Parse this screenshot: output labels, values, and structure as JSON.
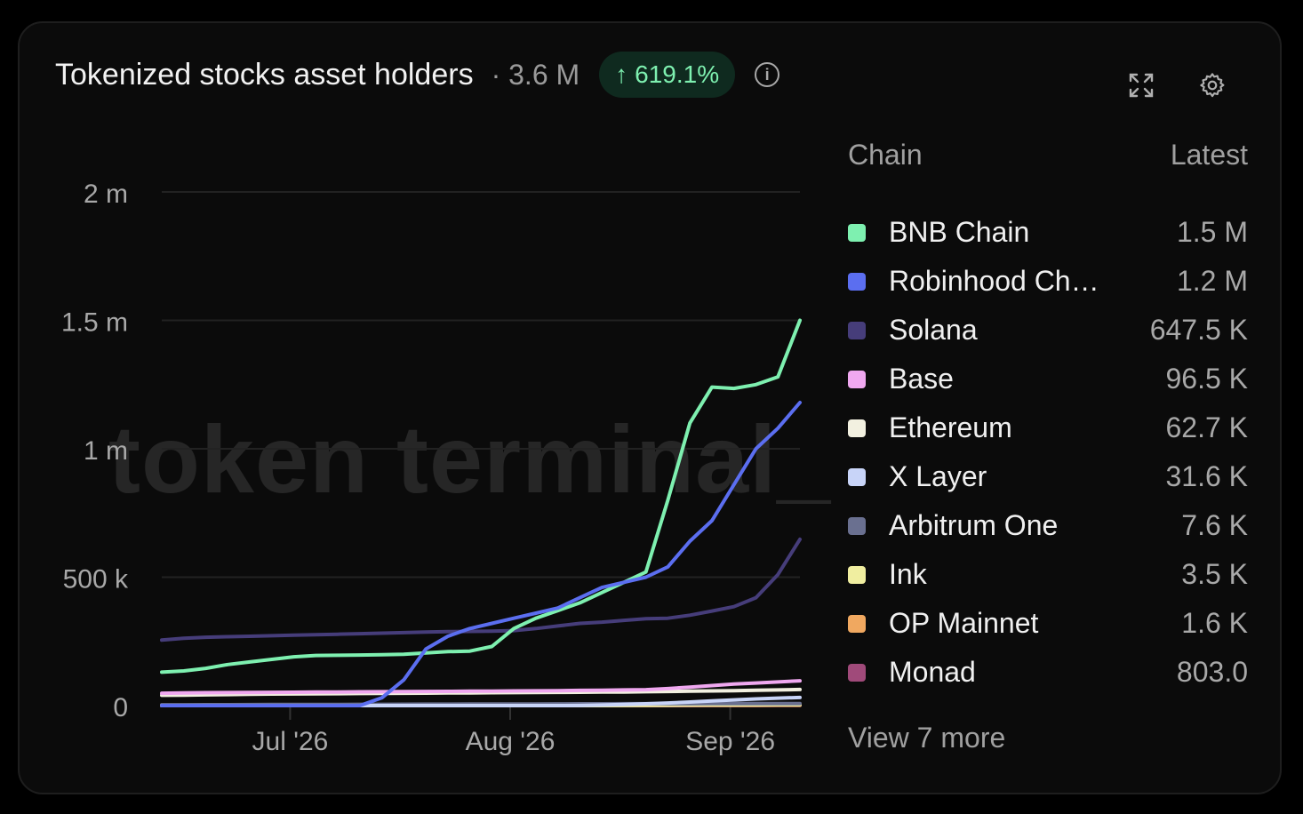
{
  "header": {
    "title": "Tokenized stocks asset holders",
    "total": "· 3.6 M",
    "change": "619.1%",
    "change_icon": "arrow-up-icon",
    "info_icon": "info-icon",
    "expand_icon": "expand-icon",
    "settings_icon": "gear-icon"
  },
  "watermark": "token terminal_",
  "legend": {
    "col_chain": "Chain",
    "col_latest": "Latest",
    "items": [
      {
        "name": "BNB Chain",
        "value": "1.5 M",
        "color": "#7ef0b0"
      },
      {
        "name": "Robinhood Ch…",
        "value": "1.2 M",
        "color": "#5b6ef0"
      },
      {
        "name": "Solana",
        "value": "647.5 K",
        "color": "#463d7a"
      },
      {
        "name": "Base",
        "value": "96.5 K",
        "color": "#f0a8f0"
      },
      {
        "name": "Ethereum",
        "value": "62.7 K",
        "color": "#f2f0e0"
      },
      {
        "name": "X Layer",
        "value": "31.6 K",
        "color": "#c8d4f8"
      },
      {
        "name": "Arbitrum One",
        "value": "7.6 K",
        "color": "#6a7090"
      },
      {
        "name": "Ink",
        "value": "3.5 K",
        "color": "#f0eea0"
      },
      {
        "name": "OP Mainnet",
        "value": "1.6 K",
        "color": "#f0a860"
      },
      {
        "name": "Monad",
        "value": "803.0",
        "color": "#a04a7a"
      }
    ],
    "view_more": "View 7 more"
  },
  "chart_data": {
    "type": "line",
    "x": [
      0,
      3,
      6,
      9,
      12,
      15,
      18,
      21,
      24,
      27,
      30,
      33,
      36,
      39,
      42,
      45,
      48,
      51,
      54,
      57,
      60,
      63,
      66,
      69,
      72,
      75,
      78,
      81,
      84,
      87
    ],
    "x_ticks": [
      {
        "label": "Jul '26",
        "x": 17.5
      },
      {
        "label": "Aug '26",
        "x": 47.5
      },
      {
        "label": "Sep '26",
        "x": 77.5
      }
    ],
    "xlim": [
      0,
      87
    ],
    "y_ticks": [
      {
        "label": "0",
        "value": 0
      },
      {
        "label": "500 k",
        "value": 500000
      },
      {
        "label": "1 m",
        "value": 1000000
      },
      {
        "label": "1.5 m",
        "value": 1500000
      },
      {
        "label": "2 m",
        "value": 2000000
      }
    ],
    "ylim": [
      0,
      2000000
    ],
    "grid": true,
    "series": [
      {
        "name": "Monad",
        "color": "#a04a7a",
        "values": [
          0,
          0,
          0,
          0,
          0,
          0,
          0,
          0,
          0,
          0,
          0,
          0,
          0,
          0,
          0,
          0,
          0,
          0,
          0,
          0,
          0,
          0,
          0,
          0,
          0,
          200,
          400,
          500,
          700,
          803
        ]
      },
      {
        "name": "OP Mainnet",
        "color": "#f0a860",
        "values": [
          300,
          320,
          340,
          360,
          380,
          400,
          430,
          460,
          500,
          530,
          560,
          600,
          640,
          700,
          760,
          820,
          880,
          950,
          1020,
          1100,
          1180,
          1250,
          1300,
          1350,
          1400,
          1450,
          1500,
          1550,
          1580,
          1600
        ]
      },
      {
        "name": "Ink",
        "color": "#f0eea0",
        "values": [
          0,
          0,
          0,
          0,
          0,
          0,
          0,
          0,
          0,
          0,
          0,
          0,
          0,
          0,
          0,
          0,
          0,
          0,
          0,
          0,
          0,
          500,
          1000,
          1500,
          2000,
          2500,
          2800,
          3100,
          3300,
          3500
        ]
      },
      {
        "name": "Arbitrum One",
        "color": "#6a7090",
        "values": [
          3000,
          3200,
          3400,
          3600,
          3800,
          4000,
          4200,
          4400,
          4600,
          4800,
          5000,
          5200,
          5400,
          5600,
          5800,
          6000,
          6200,
          6400,
          6600,
          6800,
          7000,
          7100,
          7200,
          7300,
          7400,
          7450,
          7500,
          7550,
          7580,
          7600
        ]
      },
      {
        "name": "X Layer",
        "color": "#c8d4f8",
        "values": [
          0,
          0,
          0,
          0,
          0,
          0,
          0,
          0,
          0,
          0,
          0,
          0,
          0,
          0,
          0,
          0,
          0,
          0,
          0,
          500,
          2000,
          4000,
          7000,
          10000,
          14000,
          18000,
          22000,
          26000,
          29000,
          31600
        ]
      },
      {
        "name": "Ethereum",
        "color": "#f2f0e0",
        "values": [
          40000,
          41000,
          42000,
          43000,
          44000,
          45000,
          45500,
          46000,
          46500,
          47000,
          47500,
          48000,
          48500,
          49000,
          49500,
          50000,
          50500,
          51000,
          51500,
          52000,
          52500,
          53000,
          54000,
          55000,
          56000,
          57000,
          58000,
          59500,
          61000,
          62700
        ]
      },
      {
        "name": "Base",
        "color": "#f0a8f0",
        "values": [
          48000,
          49000,
          50000,
          50500,
          51000,
          51500,
          52000,
          52500,
          53000,
          53500,
          54000,
          54500,
          55000,
          55500,
          56000,
          56500,
          57000,
          57500,
          58000,
          59000,
          60000,
          61000,
          62000,
          66000,
          72000,
          78000,
          84000,
          88000,
          92000,
          96500
        ]
      },
      {
        "name": "Solana",
        "color": "#463d7a",
        "values": [
          255000,
          262000,
          266000,
          268000,
          270000,
          272000,
          274000,
          276000,
          278000,
          280000,
          282000,
          284000,
          286000,
          288000,
          289000,
          290000,
          292000,
          300000,
          310000,
          320000,
          325000,
          332000,
          338000,
          340000,
          352000,
          368000,
          385000,
          420000,
          510000,
          647500
        ]
      },
      {
        "name": "BNB Chain",
        "color": "#7ef0b0",
        "values": [
          130000,
          135000,
          145000,
          160000,
          170000,
          180000,
          190000,
          195000,
          196000,
          197000,
          198000,
          200000,
          205000,
          210000,
          212000,
          230000,
          300000,
          340000,
          370000,
          400000,
          440000,
          480000,
          520000,
          800000,
          1100000,
          1240000,
          1235000,
          1250000,
          1280000,
          1500000
        ]
      },
      {
        "name": "Robinhood Ch…",
        "color": "#5b6ef0",
        "values": [
          0,
          0,
          0,
          0,
          0,
          0,
          0,
          0,
          0,
          0,
          30000,
          100000,
          220000,
          270000,
          300000,
          320000,
          340000,
          360000,
          380000,
          420000,
          460000,
          480000,
          500000,
          540000,
          640000,
          720000,
          860000,
          1000000,
          1080000,
          1180000
        ]
      }
    ]
  }
}
